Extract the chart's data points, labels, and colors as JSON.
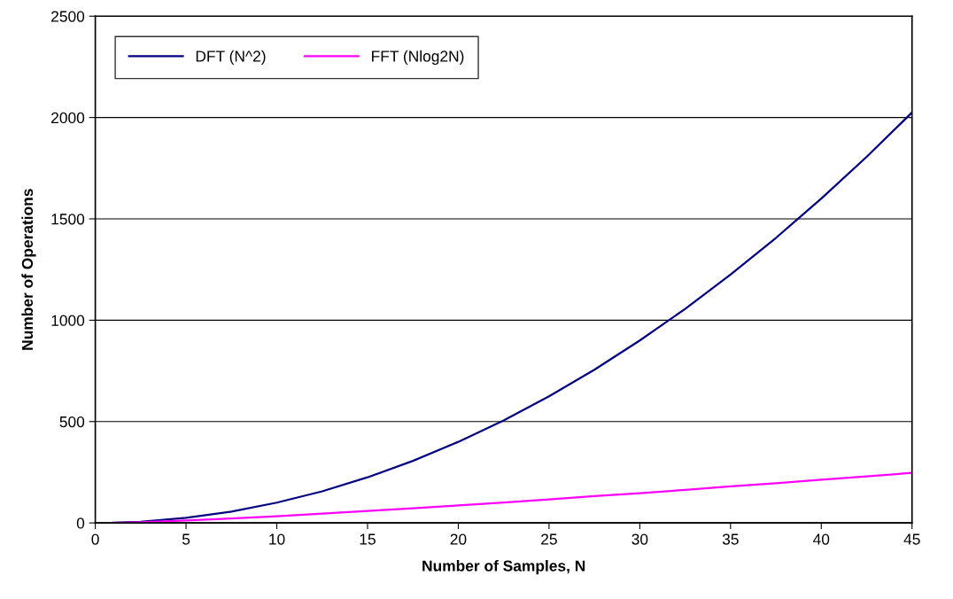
{
  "chart_data": {
    "type": "line",
    "xlabel": "Number of Samples, N",
    "ylabel": "Number of Operations",
    "x": [
      1,
      2.5,
      5,
      7.5,
      10,
      12.5,
      15,
      17.5,
      20,
      22.5,
      25,
      27.5,
      30,
      32.5,
      35,
      37.5,
      40,
      42.5,
      45
    ],
    "series": [
      {
        "name": "DFT (N^2)",
        "color": "#000080",
        "values": [
          1,
          6,
          25,
          56,
          100,
          156,
          225,
          306,
          400,
          506,
          625,
          756,
          900,
          1056,
          1225,
          1406,
          1600,
          1806,
          2025
        ]
      },
      {
        "name": "FFT (Nlog2N)",
        "color": "#ff00ff",
        "values": [
          0,
          3,
          12,
          22,
          33,
          46,
          59,
          72,
          86,
          101,
          116,
          132,
          147,
          163,
          180,
          196,
          213,
          230,
          247
        ]
      }
    ],
    "xlim": [
      0,
      45
    ],
    "xticks": [
      0,
      5,
      10,
      15,
      20,
      25,
      30,
      35,
      40,
      45
    ],
    "ylim": [
      0,
      2500
    ],
    "yticks": [
      0,
      500,
      1000,
      1500,
      2000,
      2500
    ],
    "grid": "y",
    "legend": "top left",
    "marker": "none",
    "line_style": "solid"
  }
}
